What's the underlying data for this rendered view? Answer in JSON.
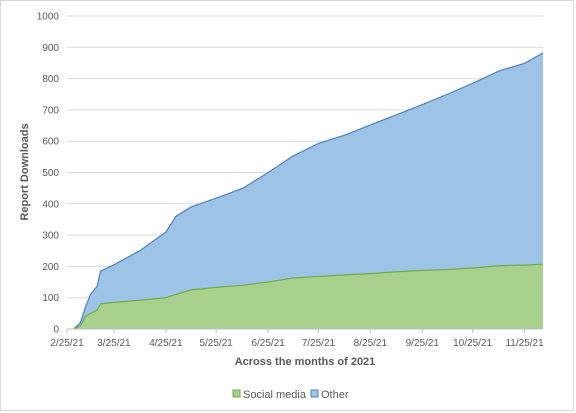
{
  "chart_data": {
    "type": "area",
    "stacked": true,
    "title": "",
    "xlabel": "Across the months of 2021",
    "ylabel": "Report Downloads",
    "ylim": [
      0,
      1000
    ],
    "y_ticks": [
      0,
      100,
      200,
      300,
      400,
      500,
      600,
      700,
      800,
      900,
      1000
    ],
    "x_tick_labels": [
      "2/25/21",
      "3/25/21",
      "4/25/21",
      "5/25/21",
      "6/25/21",
      "7/25/21",
      "8/25/21",
      "9/25/21",
      "10/25/21",
      "11/25/21"
    ],
    "x_tick_dates": [
      "2021-02-25",
      "2021-03-25",
      "2021-04-25",
      "2021-05-25",
      "2021-06-25",
      "2021-07-25",
      "2021-08-25",
      "2021-09-25",
      "2021-10-25",
      "2021-11-25"
    ],
    "x_range": [
      "2021-02-25",
      "2021-12-06"
    ],
    "grid": "horizontal",
    "legend_position": "bottom",
    "series": [
      {
        "name": "Social media",
        "color": "#a9d18e",
        "points": [
          [
            "2021-03-01",
            0
          ],
          [
            "2021-03-05",
            10
          ],
          [
            "2021-03-08",
            40
          ],
          [
            "2021-03-11",
            50
          ],
          [
            "2021-03-15",
            60
          ],
          [
            "2021-03-17",
            80
          ],
          [
            "2021-03-25",
            85
          ],
          [
            "2021-04-10",
            92
          ],
          [
            "2021-04-25",
            100
          ],
          [
            "2021-05-01",
            110
          ],
          [
            "2021-05-10",
            125
          ],
          [
            "2021-05-25",
            133
          ],
          [
            "2021-06-10",
            140
          ],
          [
            "2021-06-25",
            150
          ],
          [
            "2021-07-10",
            163
          ],
          [
            "2021-07-25",
            168
          ],
          [
            "2021-08-10",
            173
          ],
          [
            "2021-08-25",
            177
          ],
          [
            "2021-09-10",
            183
          ],
          [
            "2021-09-25",
            187
          ],
          [
            "2021-10-10",
            190
          ],
          [
            "2021-10-25",
            195
          ],
          [
            "2021-11-10",
            202
          ],
          [
            "2021-11-25",
            204
          ],
          [
            "2021-12-06",
            207
          ]
        ]
      },
      {
        "name": "Other",
        "color": "#9dc3e6",
        "points": [
          [
            "2021-03-01",
            0
          ],
          [
            "2021-03-05",
            10
          ],
          [
            "2021-03-08",
            30
          ],
          [
            "2021-03-11",
            60
          ],
          [
            "2021-03-15",
            77
          ],
          [
            "2021-03-17",
            105
          ],
          [
            "2021-03-25",
            120
          ],
          [
            "2021-04-10",
            160
          ],
          [
            "2021-04-25",
            210
          ],
          [
            "2021-05-01",
            250
          ],
          [
            "2021-05-10",
            265
          ],
          [
            "2021-05-25",
            285
          ],
          [
            "2021-06-10",
            310
          ],
          [
            "2021-06-25",
            350
          ],
          [
            "2021-07-10",
            390
          ],
          [
            "2021-07-25",
            425
          ],
          [
            "2021-08-10",
            447
          ],
          [
            "2021-08-25",
            475
          ],
          [
            "2021-09-10",
            502
          ],
          [
            "2021-09-25",
            530
          ],
          [
            "2021-10-10",
            560
          ],
          [
            "2021-10-25",
            590
          ],
          [
            "2021-11-10",
            623
          ],
          [
            "2021-11-25",
            645
          ],
          [
            "2021-12-06",
            675
          ]
        ]
      }
    ]
  }
}
